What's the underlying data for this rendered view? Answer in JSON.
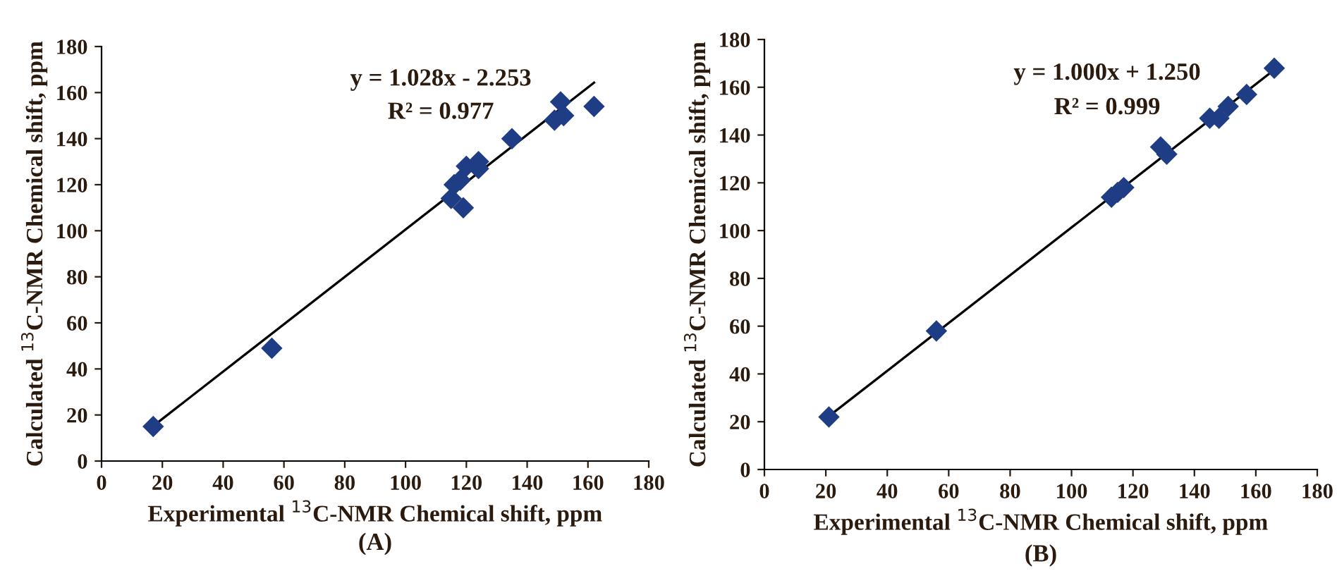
{
  "chart_data": [
    {
      "type": "scatter",
      "xlabel": "Experimental $^{13}$C-NMR Chemical shift, ppm",
      "ylabel": "Calculated $^{13}$C-NMR Chemical shift, ppm",
      "annotations": [
        "y = 1.028x - 2.253",
        "R² = 0.977",
        "(A)"
      ],
      "marker": "diamond",
      "grid": false,
      "legend": false,
      "xlim": [
        0,
        180
      ],
      "ylim": [
        0,
        180
      ],
      "xticks": [
        0,
        20,
        40,
        60,
        80,
        100,
        120,
        140,
        160,
        180
      ],
      "yticks": [
        0,
        20,
        40,
        60,
        80,
        100,
        120,
        140,
        160,
        180
      ],
      "series": [
        {
          "color": "#1f3d84",
          "x": [
            17,
            56,
            115,
            116,
            118,
            119,
            120,
            122,
            124,
            124,
            135,
            149,
            151,
            152,
            162
          ],
          "values": [
            15,
            49,
            114,
            120,
            122,
            110,
            128,
            null,
            130,
            127,
            140,
            148,
            156,
            150,
            154
          ]
        },
        {
          "type": "line",
          "color": "#000000",
          "marker": "none",
          "x": [
            17,
            162
          ],
          "values": [
            15.2,
            164.3
          ]
        }
      ]
    },
    {
      "type": "scatter",
      "xlabel": "Experimental $^{13}$C-NMR Chemical shift, ppm",
      "ylabel": "Calculated $^{13}$C-NMR Chemical shift, ppm",
      "annotations": [
        "y = 1.000x + 1.250",
        "R² = 0.999",
        "(B)"
      ],
      "marker": "diamond",
      "grid": false,
      "legend": false,
      "xlim": [
        0,
        180
      ],
      "ylim": [
        0,
        180
      ],
      "xticks": [
        0,
        20,
        40,
        60,
        80,
        100,
        120,
        140,
        160,
        180
      ],
      "yticks": [
        0,
        20,
        40,
        60,
        80,
        100,
        120,
        140,
        160,
        180
      ],
      "series": [
        {
          "color": "#1f3d84",
          "x": [
            21,
            56,
            113,
            115,
            117,
            129,
            131,
            145,
            148,
            150,
            151,
            157,
            166
          ],
          "values": [
            22,
            58,
            114,
            116,
            118,
            135,
            132,
            147,
            147,
            null,
            152,
            157,
            168
          ]
        },
        {
          "type": "line",
          "color": "#000000",
          "marker": "none",
          "x": [
            21,
            166
          ],
          "values": [
            22.3,
            167.3
          ]
        }
      ]
    }
  ]
}
